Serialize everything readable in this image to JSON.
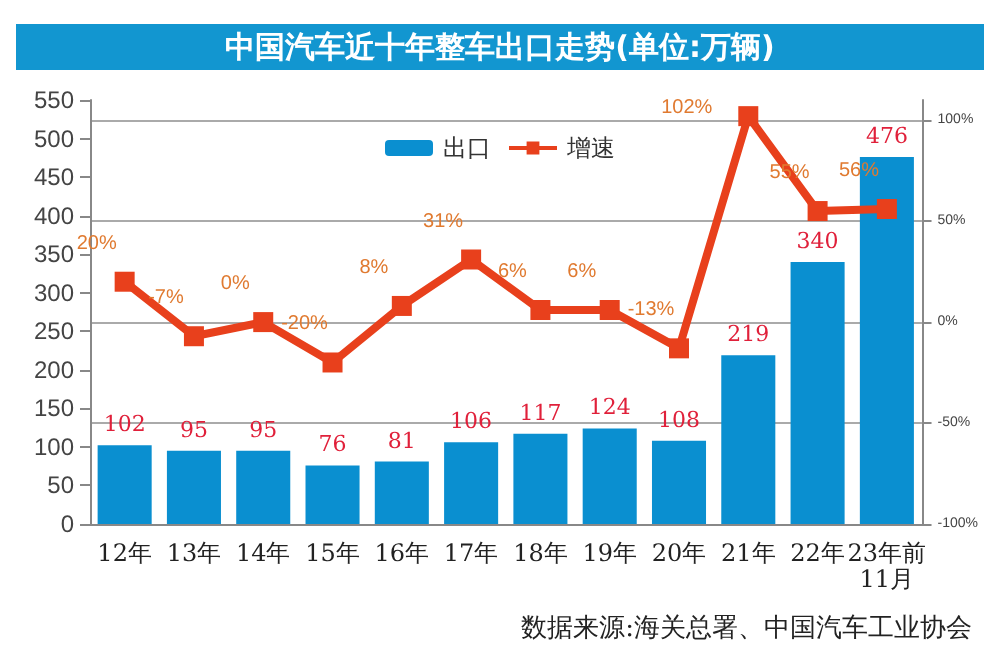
{
  "chart_data": {
    "type": "bar",
    "title": "中国汽车近十年整车出口走势(单位:万辆)",
    "categories": [
      "12年",
      "13年",
      "14年",
      "15年",
      "16年",
      "17年",
      "18年",
      "19年",
      "20年",
      "21年",
      "22年",
      "23年前11月"
    ],
    "series": [
      {
        "name": "出口",
        "color": "#0a8fd0",
        "values": [
          102,
          95,
          95,
          76,
          81,
          106,
          117,
          124,
          108,
          219,
          340,
          476
        ]
      },
      {
        "name": "增速",
        "type": "line",
        "axis": "y2",
        "color": "#e8401c",
        "marker": "square",
        "values": [
          20,
          -7,
          0,
          -20,
          8,
          31,
          6,
          6,
          -13,
          102,
          55,
          56
        ],
        "value_labels": [
          "20%",
          "-7%",
          "0%",
          "-20%",
          "8%",
          "31%",
          "6%",
          "6%",
          "-13%",
          "102%",
          "55%",
          "56%"
        ]
      }
    ],
    "data_labels": true,
    "ylim": [
      0,
      550
    ],
    "yticks": [
      0,
      50,
      100,
      150,
      200,
      250,
      300,
      350,
      400,
      450,
      500,
      550
    ],
    "y2lim": [
      -100,
      110
    ],
    "y2ticks": [
      {
        "value": -100,
        "label": "-100%"
      },
      {
        "value": -50,
        "label": "-50%"
      },
      {
        "value": 0,
        "label": "0%"
      },
      {
        "value": 50,
        "label": "50%"
      },
      {
        "value": 100,
        "label": "100%"
      }
    ],
    "grid": "y2",
    "legend": "top",
    "annotations": [
      "数据来源:海关总署、中国汽车工业协会"
    ]
  }
}
